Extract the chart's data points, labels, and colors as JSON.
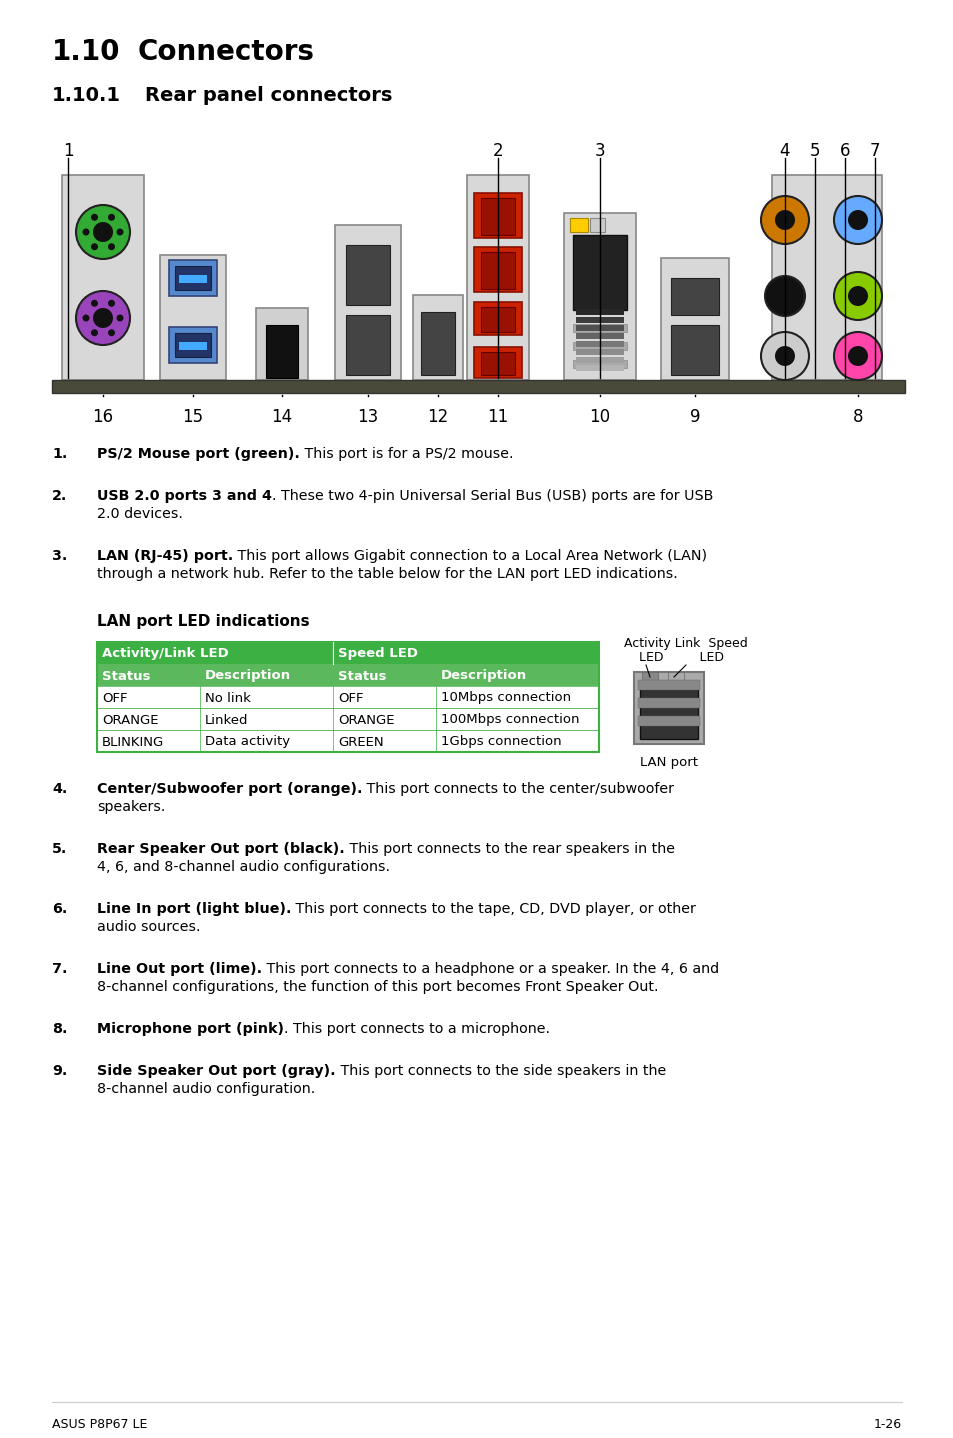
{
  "title1": "1.10",
  "title1_text": "Connectors",
  "title2": "1.10.1",
  "title2_text": "Rear panel connectors",
  "footer_left": "ASUS P8P67 LE",
  "footer_right": "1-26",
  "table_header_bg": "#3cb043",
  "table_subheader_bg": "#5cb85c",
  "table_col1_header": "Activity/Link LED",
  "table_col2_header": "Speed LED",
  "table_subheaders": [
    "Status",
    "Description",
    "Status",
    "Description"
  ],
  "table_rows": [
    [
      "OFF",
      "No link",
      "OFF",
      "10Mbps connection"
    ],
    [
      "ORANGE",
      "Linked",
      "ORANGE",
      "100Mbps connection"
    ],
    [
      "BLINKING",
      "Data activity",
      "GREEN",
      "1Gbps connection"
    ]
  ],
  "lan_table_title": "LAN port LED indications",
  "items": [
    {
      "num": "1.",
      "bold": "PS/2 Mouse port (green).",
      "normal": " This port is for a PS/2 mouse.",
      "extra": ""
    },
    {
      "num": "2.",
      "bold": "USB 2.0 ports 3 and 4",
      "normal": ". These two 4-pin Universal Serial Bus (USB) ports are for USB",
      "extra": "2.0 devices."
    },
    {
      "num": "3.",
      "bold": "LAN (RJ-45) port.",
      "normal": " This port allows Gigabit connection to a Local Area Network (LAN)",
      "extra": "through a network hub. Refer to the table below for the LAN port LED indications."
    },
    {
      "num": "4.",
      "bold": "Center/Subwoofer port (orange).",
      "normal": " This port connects to the center/subwoofer",
      "extra": "speakers."
    },
    {
      "num": "5.",
      "bold": "Rear Speaker Out port (black).",
      "normal": " This port connects to the rear speakers in the",
      "extra": "4, 6, and 8-channel audio configurations."
    },
    {
      "num": "6.",
      "bold": "Line In port (light blue).",
      "normal": " This port connects to the tape, CD, DVD player, or other",
      "extra": "audio sources."
    },
    {
      "num": "7.",
      "bold": "Line Out port (lime).",
      "normal": " This port connects to a headphone or a speaker. In the 4, 6 and",
      "extra": "8-channel configurations, the function of this port becomes Front Speaker Out."
    },
    {
      "num": "8.",
      "bold": "Microphone port (pink)",
      "normal": ". This port connects to a microphone.",
      "extra": ""
    },
    {
      "num": "9.",
      "bold": "Side Speaker Out port (gray).",
      "normal": " This port connects to the side speakers in the",
      "extra": "8-channel audio configuration."
    }
  ]
}
